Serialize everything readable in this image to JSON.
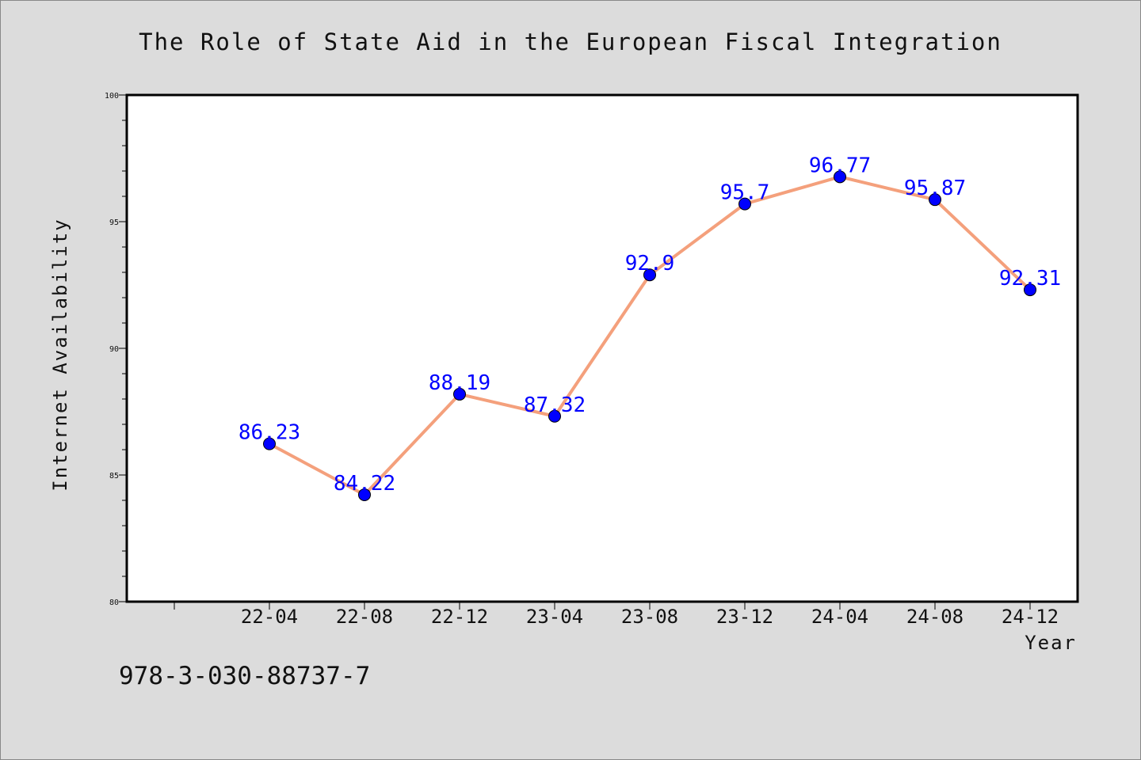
{
  "chart_data": {
    "type": "line",
    "title": "The Role of State Aid in the European Fiscal Integration",
    "xlabel": "Year",
    "ylabel": "Internet Availability",
    "categories": [
      "22-04",
      "22-08",
      "22-12",
      "23-04",
      "23-08",
      "23-12",
      "24-04",
      "24-08",
      "24-12"
    ],
    "series": [
      {
        "values": [
          86.23,
          84.22,
          88.19,
          87.32,
          92.9,
          95.7,
          96.77,
          95.87,
          92.31
        ],
        "data_labels": [
          "86.23",
          "84.22",
          "88.19",
          "87.32",
          "92.9",
          "95.7",
          "96.77",
          "95.87",
          "92.31"
        ]
      }
    ],
    "ylim": [
      80,
      100
    ],
    "yticks": [
      80,
      85,
      90,
      95,
      100
    ],
    "grid": false,
    "colors": {
      "line": "#f4a07c",
      "marker": "#0000ff",
      "data_label": "#0000ff",
      "background": "#dcdcdc",
      "plot_background": "#ffffff"
    }
  },
  "footnote": "978-3-030-88737-7"
}
